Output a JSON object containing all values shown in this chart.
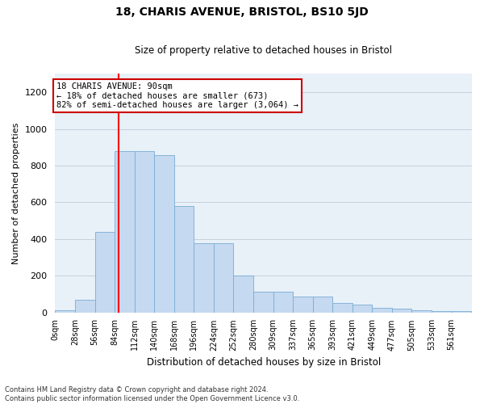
{
  "title": "18, CHARIS AVENUE, BRISTOL, BS10 5JD",
  "subtitle": "Size of property relative to detached houses in Bristol",
  "xlabel": "Distribution of detached houses by size in Bristol",
  "ylabel": "Number of detached properties",
  "bin_labels": [
    "0sqm",
    "28sqm",
    "56sqm",
    "84sqm",
    "112sqm",
    "140sqm",
    "168sqm",
    "196sqm",
    "224sqm",
    "252sqm",
    "280sqm",
    "309sqm",
    "337sqm",
    "365sqm",
    "393sqm",
    "421sqm",
    "449sqm",
    "477sqm",
    "505sqm",
    "533sqm",
    "561sqm"
  ],
  "bar_heights": [
    12,
    67,
    437,
    880,
    878,
    858,
    578,
    378,
    375,
    200,
    113,
    113,
    88,
    88,
    50,
    40,
    25,
    20,
    10,
    5,
    5
  ],
  "bar_color": "#c5d9f0",
  "bar_edge_color": "#7aadd4",
  "bg_color": "#e8f0f8",
  "grid_color": "#c8d0dc",
  "vline_x": 90,
  "vline_color": "red",
  "annotation_text": "18 CHARIS AVENUE: 90sqm\n← 18% of detached houses are smaller (673)\n82% of semi-detached houses are larger (3,064) →",
  "annotation_box_color": "white",
  "annotation_box_edge_color": "#cc0000",
  "yticks": [
    0,
    200,
    400,
    600,
    800,
    1000,
    1200
  ],
  "ylim": [
    0,
    1300
  ],
  "xlim": [
    0,
    589
  ],
  "footnote": "Contains HM Land Registry data © Crown copyright and database right 2024.\nContains public sector information licensed under the Open Government Licence v3.0.",
  "bin_width": 28,
  "bin_start": 0,
  "title_fontsize": 10,
  "subtitle_fontsize": 8.5,
  "xlabel_fontsize": 8.5,
  "ylabel_fontsize": 8,
  "footnote_fontsize": 6,
  "annot_fontsize": 7.5
}
